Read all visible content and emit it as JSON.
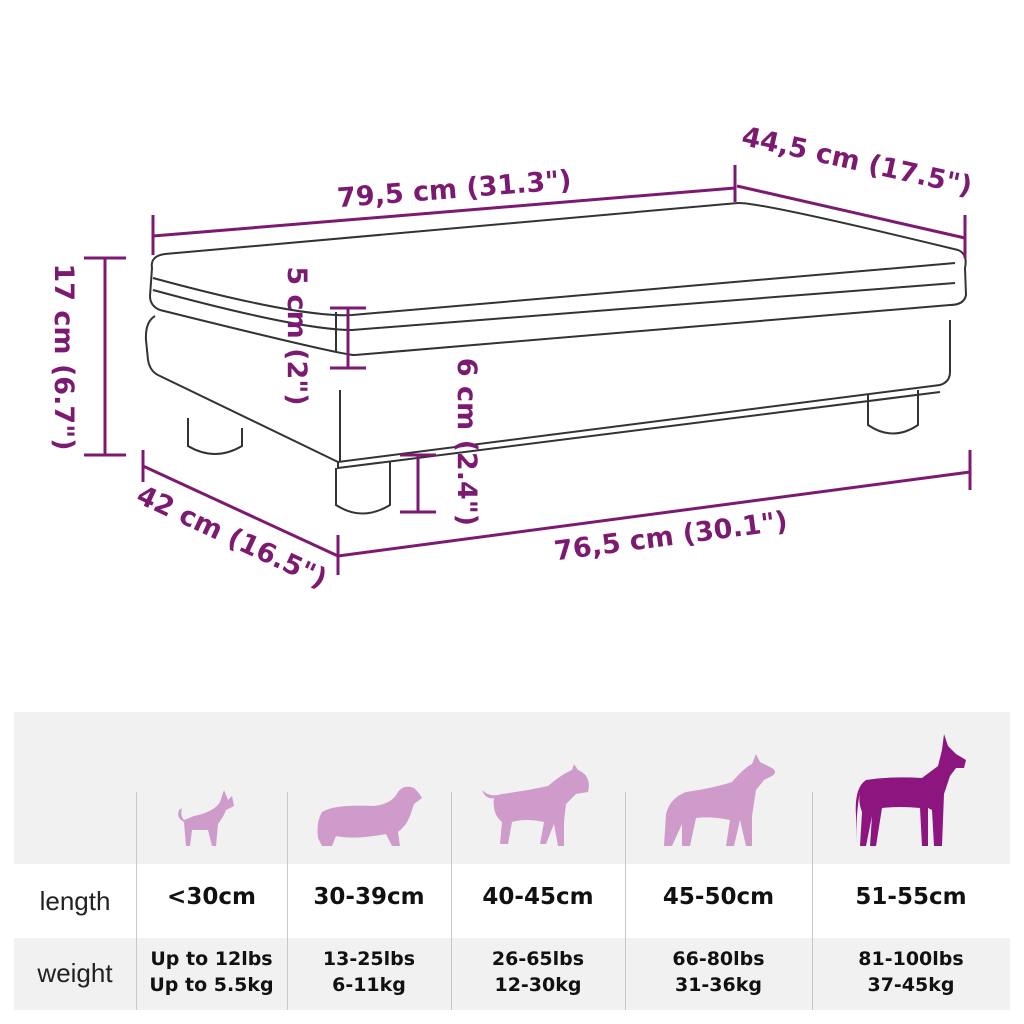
{
  "dimensions": {
    "top_length": "79,5 cm (31.3\")",
    "top_depth": "44,5 cm (17.5\")",
    "total_height": "17 cm (6.7\")",
    "cushion_height": "5 cm (2\")",
    "leg_height": "6 cm (2.4\")",
    "base_depth": "42 cm (16.5\")",
    "base_length": "76,5 cm (30.1\")"
  },
  "size_table": {
    "row_labels": {
      "length": "length",
      "weight": "weight"
    },
    "columns": [
      {
        "dog": "chihuahua-icon",
        "length": "<30cm",
        "weight_lbs": "Up to 12lbs",
        "weight_kg": "Up to 5.5kg",
        "color": "#cf9bcb"
      },
      {
        "dog": "dachshund-icon",
        "length": "30-39cm",
        "weight_lbs": "13-25lbs",
        "weight_kg": "6-11kg",
        "color": "#cf9bcb"
      },
      {
        "dog": "bull-terrier-icon",
        "length": "40-45cm",
        "weight_lbs": "26-65lbs",
        "weight_kg": "12-30kg",
        "color": "#cf9bcb"
      },
      {
        "dog": "shepherd-icon",
        "length": "45-50cm",
        "weight_lbs": "66-80lbs",
        "weight_kg": "31-36kg",
        "color": "#cf9bcb"
      },
      {
        "dog": "great-dane-icon",
        "length": "51-55cm",
        "weight_lbs": "81-100lbs",
        "weight_kg": "37-45kg",
        "color": "#8c1580"
      }
    ]
  },
  "colors": {
    "annotation": "#7b1a70",
    "outline": "#333333",
    "band": "#f1f1f1"
  }
}
